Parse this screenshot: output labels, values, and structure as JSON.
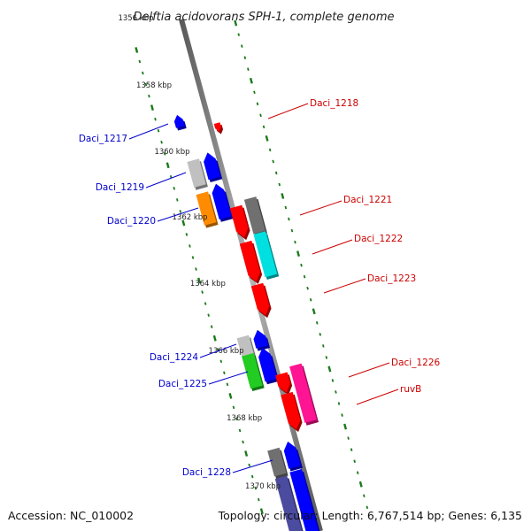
{
  "title": "Delftia acidovorans SPH-1, complete genome",
  "footer": {
    "accession": "Accession: NC_010002",
    "topology": "Topology: circular; Length: 6,767,514 bp; Genes: 6,135"
  },
  "ticks": [
    "1356 kbp",
    "1358 kbp",
    "1360 kbp",
    "1362 kbp",
    "1364 kbp",
    "1366 kbp",
    "1368 kbp",
    "1370 kbp"
  ],
  "labels": {
    "forward": [
      "Daci_1218",
      "Daci_1221",
      "Daci_1222",
      "Daci_1223",
      "Daci_1226",
      "ruvB"
    ],
    "reverse": [
      "Daci_1217",
      "Daci_1219",
      "Daci_1220",
      "Daci_1224",
      "Daci_1225",
      "Daci_1228"
    ]
  },
  "colors": {
    "forward_label": "#cc0000",
    "reverse_label": "#0000cc",
    "tick": "#1a7a1a",
    "backbone": "#8a8a8a"
  }
}
